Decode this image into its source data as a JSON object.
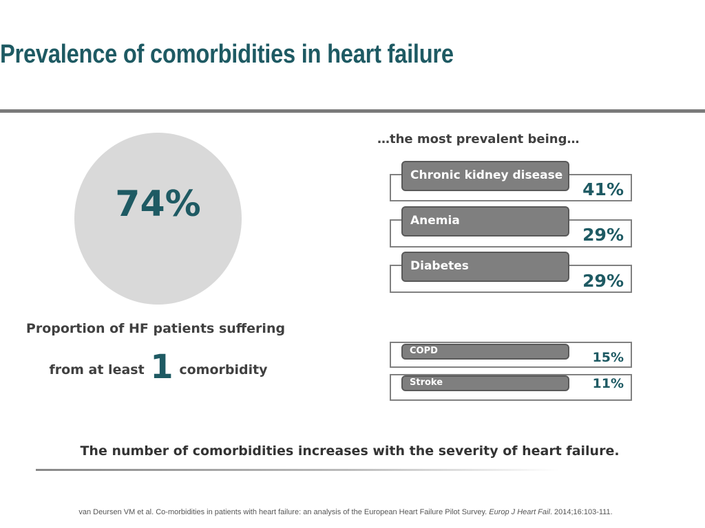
{
  "title": "Prevalence of comorbidities in heart failure",
  "overall": {
    "value": "74%",
    "caption_line1": "Proportion of HF patients suffering",
    "caption_pre": "from at least",
    "caption_number": "1",
    "caption_post": "comorbidity"
  },
  "list_heading": "…the most prevalent being…",
  "comorbidities": [
    {
      "label": "Chronic kidney disease",
      "value": "41%"
    },
    {
      "label": "Anemia",
      "value": "29%"
    },
    {
      "label": "Diabetes",
      "value": "29%"
    },
    {
      "label": "COPD",
      "value": "15%"
    },
    {
      "label": "Stroke",
      "value": "11%"
    }
  ],
  "conclusion": "The number of comorbidities increases with the severity of heart failure.",
  "reference": {
    "text": "van Deursen VM et al. Co-morbidities in patients with heart failure: an analysis of the European Heart Failure Pilot Survey.",
    "journal": "Europ J Heart Fail",
    "citation": ". 2014;16:103-111."
  }
}
